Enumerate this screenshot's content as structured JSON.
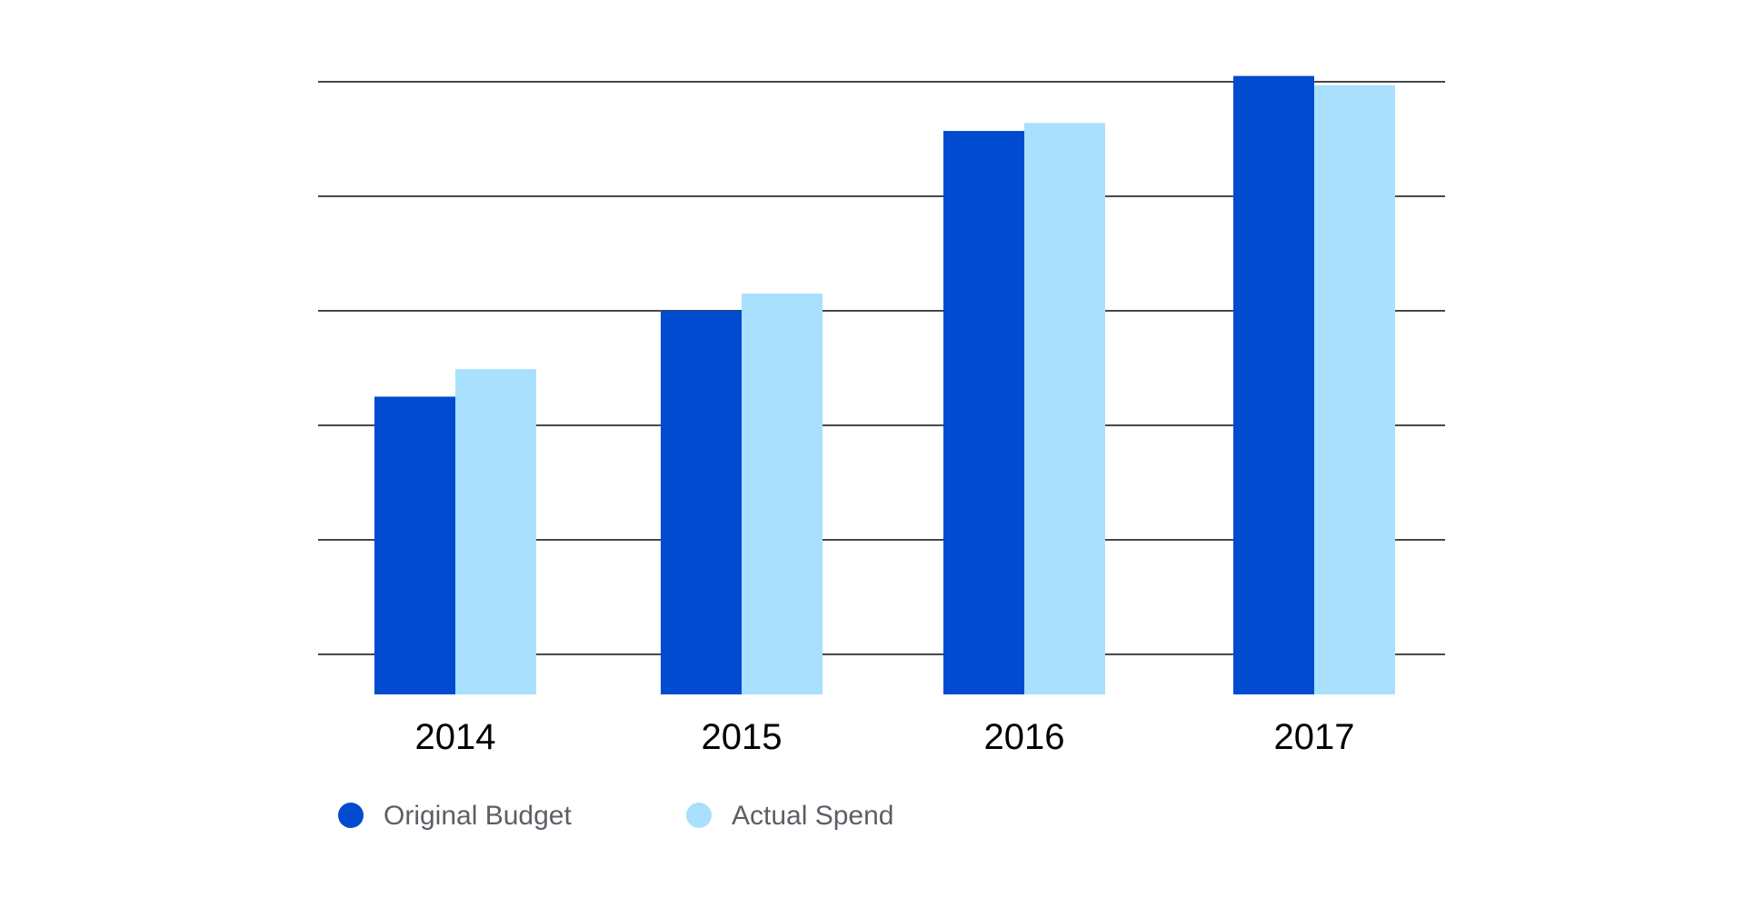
{
  "chart_data": {
    "type": "bar",
    "title": "",
    "xlabel": "",
    "ylabel": "",
    "categories": [
      "2014",
      "2015",
      "2016",
      "2017"
    ],
    "series": [
      {
        "name": "Original Budget",
        "color": "#004bcf",
        "values": [
          2.6,
          3.35,
          4.92,
          5.4
        ]
      },
      {
        "name": "Actual Spend",
        "color": "#a8e0fd",
        "values": [
          2.84,
          3.5,
          4.99,
          5.32
        ]
      }
    ],
    "ylim": [
      0,
      5.35
    ],
    "gridlines": [
      0.35,
      1.35,
      2.35,
      3.35,
      4.35,
      5.35
    ],
    "grid": true,
    "y_tick_labels": false,
    "legend_position": "bottom-left"
  }
}
